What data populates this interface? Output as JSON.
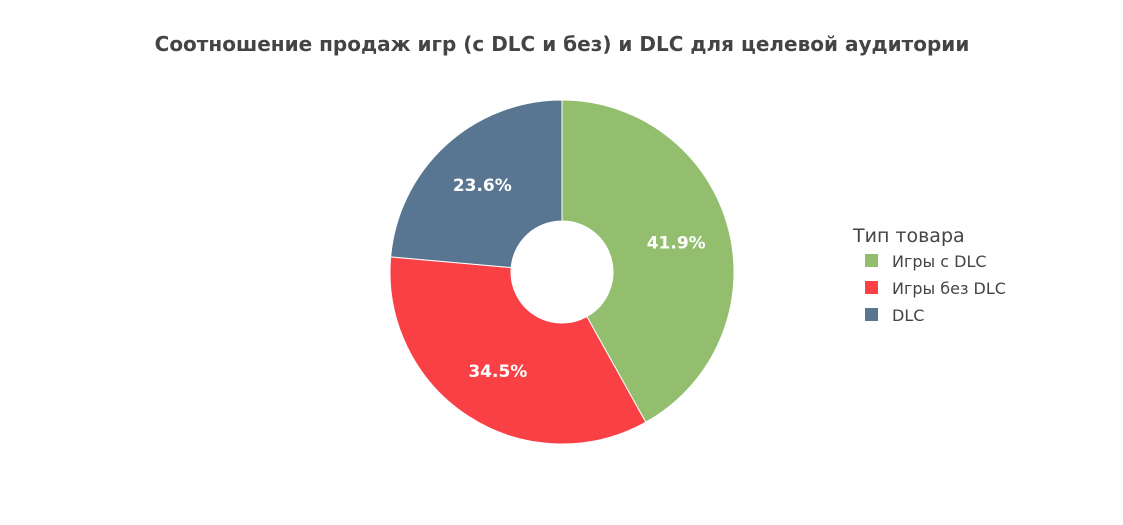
{
  "chart_data": {
    "type": "pie",
    "title": "Соотношение продаж игр (с DLC и без) и DLC для целевой аудитории",
    "hole": true,
    "legend": {
      "title": "Тип товара",
      "placement": "right"
    },
    "slices": [
      {
        "label": "Игры с DLC",
        "value": 41.9,
        "display": "41.9%",
        "color": "#93be6e"
      },
      {
        "label": "Игры без DLC",
        "value": 34.5,
        "display": "34.5%",
        "color": "#f94045"
      },
      {
        "label": "DLC",
        "value": 23.6,
        "display": "23.6%",
        "color": "#587591"
      }
    ]
  }
}
